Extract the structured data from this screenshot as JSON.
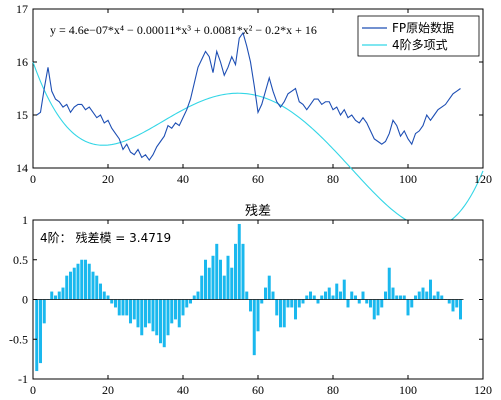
{
  "chart_data": [
    {
      "type": "line",
      "title": "",
      "xlabel": "",
      "ylabel": "",
      "xlim": [
        0,
        120
      ],
      "ylim": [
        14,
        17
      ],
      "xticks": [
        0,
        20,
        40,
        60,
        80,
        100,
        120
      ],
      "yticks": [
        14,
        15,
        16,
        17
      ],
      "grid": false,
      "annotation": "y = 4.6e−07*x⁴ − 0.00011*x³ + 0.0081*x² − 0.2*x + 16",
      "legend": {
        "placement": "top-right",
        "entries": [
          {
            "label": "FP原始数据",
            "color": "#1e4fb4"
          },
          {
            "label": "4阶多项式",
            "color": "#33d6e6"
          }
        ]
      },
      "series": [
        {
          "name": "FP原始数据",
          "color": "#1e4fb4",
          "style": "line",
          "x": [
            1,
            2,
            3,
            4,
            5,
            6,
            7,
            8,
            9,
            10,
            11,
            12,
            13,
            14,
            15,
            16,
            17,
            18,
            19,
            20,
            21,
            22,
            23,
            24,
            25,
            26,
            27,
            28,
            29,
            30,
            31,
            32,
            33,
            34,
            35,
            36,
            37,
            38,
            39,
            40,
            41,
            42,
            43,
            44,
            45,
            46,
            47,
            48,
            49,
            50,
            51,
            52,
            53,
            54,
            55,
            56,
            57,
            58,
            59,
            60,
            61,
            62,
            63,
            64,
            65,
            66,
            67,
            68,
            69,
            70,
            71,
            72,
            73,
            74,
            75,
            76,
            77,
            78,
            79,
            80,
            81,
            82,
            83,
            84,
            85,
            86,
            87,
            88,
            89,
            90,
            91,
            92,
            93,
            94,
            95,
            96,
            97,
            98,
            99,
            100,
            101,
            102,
            103,
            104,
            105,
            106,
            107,
            108,
            109,
            110,
            111,
            112,
            113,
            114
          ],
          "y": [
            15.0,
            15.05,
            15.5,
            15.9,
            15.45,
            15.3,
            15.25,
            15.15,
            15.2,
            15.05,
            15.15,
            15.2,
            15.2,
            15.1,
            15.15,
            15.05,
            14.95,
            15.0,
            14.85,
            14.9,
            14.75,
            14.65,
            14.55,
            14.35,
            14.45,
            14.3,
            14.25,
            14.35,
            14.2,
            14.25,
            14.15,
            14.25,
            14.4,
            14.5,
            14.6,
            14.8,
            14.75,
            14.85,
            14.8,
            14.95,
            15.1,
            15.3,
            15.6,
            15.9,
            16.05,
            16.2,
            16.1,
            15.8,
            16.2,
            16.0,
            15.75,
            15.9,
            16.1,
            15.95,
            16.45,
            16.55,
            16.3,
            16.0,
            15.55,
            15.05,
            15.2,
            15.45,
            15.7,
            15.45,
            15.25,
            15.15,
            15.25,
            15.4,
            15.45,
            15.5,
            15.25,
            15.2,
            15.1,
            15.2,
            15.3,
            15.3,
            15.2,
            15.25,
            15.25,
            15.1,
            15.15,
            15.0,
            15.1,
            14.95,
            15.0,
            14.9,
            14.85,
            14.95,
            14.85,
            14.7,
            14.55,
            14.5,
            14.45,
            14.5,
            14.65,
            14.9,
            14.8,
            14.6,
            14.7,
            14.55,
            14.45,
            14.65,
            14.7,
            14.8,
            15.0,
            14.9,
            15.0,
            15.1,
            15.15,
            15.2,
            15.3,
            15.4,
            15.45,
            15.5
          ]
        },
        {
          "name": "4阶多项式",
          "color": "#33d6e6",
          "style": "curve",
          "x_range": [
            0,
            120
          ],
          "coefficients_descending": [
            4.6e-07,
            -0.00011,
            0.0081,
            -0.2,
            16
          ]
        }
      ]
    },
    {
      "type": "bar",
      "title": "残差",
      "xlabel": "",
      "ylabel": "",
      "xlim": [
        0,
        120
      ],
      "ylim": [
        -1,
        1
      ],
      "xticks": [
        0,
        20,
        40,
        60,
        80,
        100,
        120
      ],
      "yticks": [
        -1,
        -0.5,
        0,
        0.5,
        1
      ],
      "grid": false,
      "annotation": "4阶： 残差模 = 3.4719",
      "series": [
        {
          "name": "",
          "color": "#1ab8ee",
          "x": [
            1,
            2,
            3,
            4,
            5,
            6,
            7,
            8,
            9,
            10,
            11,
            12,
            13,
            14,
            15,
            16,
            17,
            18,
            19,
            20,
            21,
            22,
            23,
            24,
            25,
            26,
            27,
            28,
            29,
            30,
            31,
            32,
            33,
            34,
            35,
            36,
            37,
            38,
            39,
            40,
            41,
            42,
            43,
            44,
            45,
            46,
            47,
            48,
            49,
            50,
            51,
            52,
            53,
            54,
            55,
            56,
            57,
            58,
            59,
            60,
            61,
            62,
            63,
            64,
            65,
            66,
            67,
            68,
            69,
            70,
            71,
            72,
            73,
            74,
            75,
            76,
            77,
            78,
            79,
            80,
            81,
            82,
            83,
            84,
            85,
            86,
            87,
            88,
            89,
            90,
            91,
            92,
            93,
            94,
            95,
            96,
            97,
            98,
            99,
            100,
            101,
            102,
            103,
            104,
            105,
            106,
            107,
            108,
            109,
            110,
            111,
            112,
            113,
            114
          ],
          "values": [
            -0.9,
            -0.8,
            -0.3,
            0.0,
            0.1,
            0.05,
            0.1,
            0.15,
            0.3,
            0.35,
            0.4,
            0.45,
            0.5,
            0.5,
            0.45,
            0.35,
            0.3,
            0.2,
            0.1,
            0.05,
            -0.05,
            -0.1,
            -0.2,
            -0.2,
            -0.2,
            -0.3,
            -0.25,
            -0.35,
            -0.45,
            -0.35,
            -0.3,
            -0.4,
            -0.45,
            -0.55,
            -0.6,
            -0.45,
            -0.3,
            -0.25,
            -0.35,
            -0.2,
            -0.1,
            -0.05,
            0.05,
            0.1,
            0.3,
            0.5,
            0.4,
            0.55,
            0.7,
            0.5,
            0.3,
            0.55,
            0.4,
            0.7,
            0.95,
            0.7,
            0.1,
            -0.15,
            -0.7,
            -0.4,
            -0.05,
            0.15,
            0.3,
            0.1,
            -0.2,
            -0.35,
            -0.35,
            -0.1,
            -0.1,
            -0.25,
            -0.1,
            -0.05,
            0.05,
            0.1,
            0.05,
            -0.05,
            0.05,
            0.1,
            0.15,
            0.05,
            0.2,
            0.1,
            0.25,
            -0.1,
            0.1,
            0.05,
            -0.05,
            0.1,
            -0.05,
            -0.1,
            -0.25,
            -0.2,
            -0.1,
            0.1,
            0.4,
            0.15,
            0.05,
            0.05,
            0.05,
            -0.2,
            -0.1,
            0.05,
            0.1,
            0.15,
            0.1,
            0.25,
            0.05,
            0.1,
            0.05,
            0.0,
            -0.05,
            -0.15,
            -0.1,
            -0.25
          ]
        }
      ]
    }
  ]
}
